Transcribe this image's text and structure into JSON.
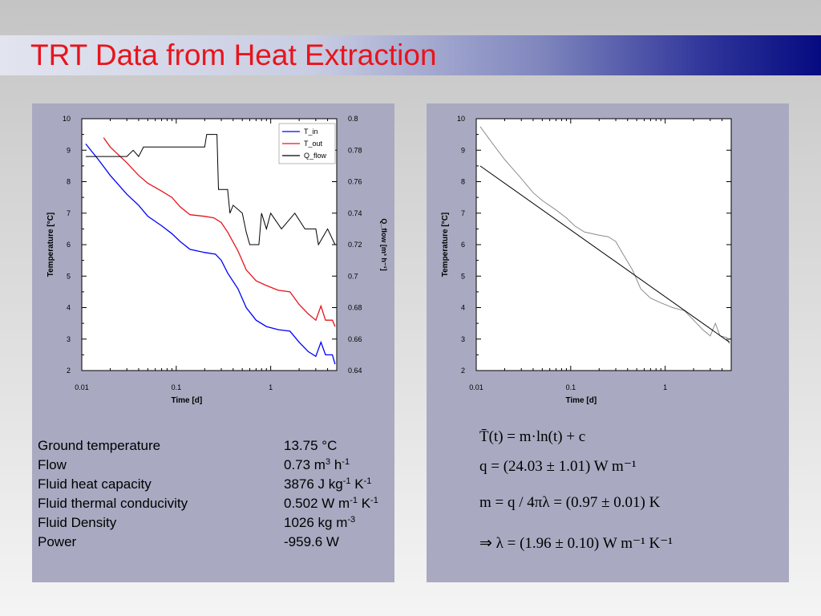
{
  "slide": {
    "title": "TRT Data from Heat Extraction",
    "properties": [
      {
        "name": "Ground temperature",
        "value": "13.75 °C"
      },
      {
        "name": "Flow",
        "value_html": "0.73 m<sup>3</sup> h<sup>-1</sup>"
      },
      {
        "name": "Fluid heat capacity",
        "value_html": "3876 J kg<sup>-1</sup> K<sup>-1</sup>"
      },
      {
        "name": "Fluid thermal conducivity",
        "value_html": "0.502 W m<sup>-1</sup> K<sup>-1</sup>"
      },
      {
        "name": "Fluid Density",
        "value_html": "1026 kg m<sup>-3</sup>"
      },
      {
        "name": "Power",
        "value": "-959.6 W"
      }
    ],
    "equations": {
      "eq1": "T̄(t) = m·ln(t) + c",
      "eq2": "q = (24.03 ± 1.01) W m⁻¹",
      "eq3": "m = q / 4πλ = (0.97 ± 0.01) K",
      "eq4": "⇒ λ = (1.96 ± 0.10) W m⁻¹ K⁻¹"
    }
  },
  "chart_data": [
    {
      "type": "line",
      "xscale": "log",
      "xlim": [
        0.01,
        5
      ],
      "xticks": [
        "0.01",
        "0.1",
        "1"
      ],
      "xlabel": "Time [d]",
      "ylabel": "Temperature [°C]",
      "ylim": [
        2,
        10
      ],
      "yticks": [
        "2",
        "3",
        "4",
        "5",
        "6",
        "7",
        "8",
        "9",
        "10"
      ],
      "y2label": "Q_flow [m³ h⁻¹]",
      "y2lim": [
        0.64,
        0.8
      ],
      "y2ticks": [
        "0.64",
        "0.66",
        "0.68",
        "0.7",
        "0.72",
        "0.74",
        "0.76",
        "0.78",
        "0.8"
      ],
      "legend_position": "top-right",
      "series": [
        {
          "name": "T_in",
          "color": "#0000ff",
          "axis": "left",
          "points": [
            [
              0.011,
              9.2
            ],
            [
              0.015,
              8.7
            ],
            [
              0.02,
              8.2
            ],
            [
              0.03,
              7.6
            ],
            [
              0.04,
              7.25
            ],
            [
              0.05,
              6.9
            ],
            [
              0.07,
              6.6
            ],
            [
              0.09,
              6.35
            ],
            [
              0.11,
              6.1
            ],
            [
              0.14,
              5.85
            ],
            [
              0.2,
              5.75
            ],
            [
              0.26,
              5.7
            ],
            [
              0.3,
              5.5
            ],
            [
              0.35,
              5.1
            ],
            [
              0.45,
              4.6
            ],
            [
              0.55,
              4.0
            ],
            [
              0.7,
              3.6
            ],
            [
              0.9,
              3.4
            ],
            [
              1.2,
              3.3
            ],
            [
              1.6,
              3.25
            ],
            [
              2.0,
              2.9
            ],
            [
              2.5,
              2.6
            ],
            [
              3.0,
              2.45
            ],
            [
              3.4,
              2.9
            ],
            [
              3.8,
              2.5
            ],
            [
              4.5,
              2.5
            ],
            [
              4.8,
              2.2
            ]
          ]
        },
        {
          "name": "T_out",
          "color": "#e6141c",
          "axis": "left",
          "points": [
            [
              0.017,
              9.4
            ],
            [
              0.02,
              9.1
            ],
            [
              0.03,
              8.6
            ],
            [
              0.04,
              8.2
            ],
            [
              0.05,
              7.95
            ],
            [
              0.07,
              7.7
            ],
            [
              0.09,
              7.5
            ],
            [
              0.11,
              7.2
            ],
            [
              0.14,
              6.95
            ],
            [
              0.2,
              6.9
            ],
            [
              0.25,
              6.85
            ],
            [
              0.3,
              6.7
            ],
            [
              0.35,
              6.4
            ],
            [
              0.45,
              5.8
            ],
            [
              0.55,
              5.2
            ],
            [
              0.7,
              4.85
            ],
            [
              0.9,
              4.7
            ],
            [
              1.2,
              4.55
            ],
            [
              1.6,
              4.5
            ],
            [
              2.0,
              4.1
            ],
            [
              2.5,
              3.8
            ],
            [
              3.0,
              3.6
            ],
            [
              3.4,
              4.05
            ],
            [
              3.8,
              3.6
            ],
            [
              4.5,
              3.6
            ],
            [
              4.8,
              3.4
            ]
          ]
        },
        {
          "name": "Q_flow",
          "color": "#000000",
          "axis": "right",
          "points": [
            [
              0.011,
              0.776
            ],
            [
              0.03,
              0.776
            ],
            [
              0.035,
              0.78
            ],
            [
              0.04,
              0.776
            ],
            [
              0.045,
              0.782
            ],
            [
              0.1,
              0.782
            ],
            [
              0.2,
              0.782
            ],
            [
              0.21,
              0.79
            ],
            [
              0.27,
              0.79
            ],
            [
              0.28,
              0.755
            ],
            [
              0.35,
              0.755
            ],
            [
              0.37,
              0.74
            ],
            [
              0.4,
              0.745
            ],
            [
              0.5,
              0.74
            ],
            [
              0.55,
              0.728
            ],
            [
              0.6,
              0.72
            ],
            [
              0.75,
              0.72
            ],
            [
              0.8,
              0.74
            ],
            [
              0.9,
              0.73
            ],
            [
              1.0,
              0.74
            ],
            [
              1.3,
              0.73
            ],
            [
              1.8,
              0.74
            ],
            [
              2.3,
              0.73
            ],
            [
              3.0,
              0.73
            ],
            [
              3.2,
              0.72
            ],
            [
              4.0,
              0.73
            ],
            [
              4.8,
              0.72
            ]
          ]
        }
      ]
    },
    {
      "type": "line",
      "xscale": "log",
      "xlim": [
        0.01,
        5
      ],
      "xticks": [
        "0.01",
        "0.1",
        "1"
      ],
      "xlabel": "Time [d]",
      "ylabel": "Temperature [°C]",
      "ylim": [
        2,
        10
      ],
      "yticks": [
        "2",
        "3",
        "4",
        "5",
        "6",
        "7",
        "8",
        "9",
        "10"
      ],
      "series": [
        {
          "color": "#8c8c8c",
          "points": [
            [
              0.011,
              9.75
            ],
            [
              0.015,
              9.2
            ],
            [
              0.02,
              8.7
            ],
            [
              0.03,
              8.1
            ],
            [
              0.04,
              7.65
            ],
            [
              0.05,
              7.4
            ],
            [
              0.07,
              7.1
            ],
            [
              0.09,
              6.85
            ],
            [
              0.11,
              6.6
            ],
            [
              0.14,
              6.4
            ],
            [
              0.2,
              6.3
            ],
            [
              0.25,
              6.25
            ],
            [
              0.3,
              6.1
            ],
            [
              0.35,
              5.75
            ],
            [
              0.45,
              5.2
            ],
            [
              0.55,
              4.6
            ],
            [
              0.7,
              4.3
            ],
            [
              0.9,
              4.15
            ],
            [
              1.2,
              4.0
            ],
            [
              1.6,
              3.9
            ],
            [
              2.0,
              3.6
            ],
            [
              2.5,
              3.3
            ],
            [
              3.0,
              3.1
            ],
            [
              3.4,
              3.5
            ],
            [
              3.8,
              3.1
            ],
            [
              4.5,
              3.05
            ],
            [
              4.8,
              2.85
            ]
          ]
        },
        {
          "color": "#000000",
          "points": [
            [
              0.011,
              8.5
            ],
            [
              4.8,
              2.9
            ]
          ]
        }
      ]
    }
  ]
}
